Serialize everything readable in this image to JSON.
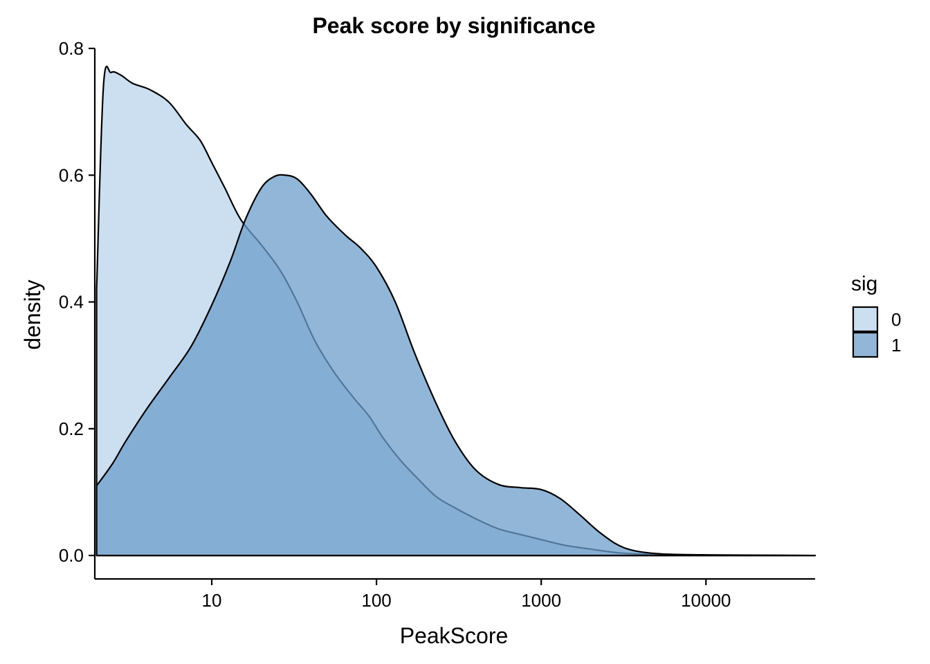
{
  "chart_data": {
    "type": "area",
    "title": "Peak score by significance",
    "xlabel": "PeakScore",
    "ylabel": "density",
    "x_scale": "log10",
    "xlim": [
      1.95,
      46000
    ],
    "ylim": [
      -0.037,
      0.8
    ],
    "x_ticks": [
      10,
      100,
      1000,
      10000
    ],
    "x_tick_labels": [
      "10",
      "100",
      "1000",
      "10000"
    ],
    "y_ticks": [
      0.0,
      0.2,
      0.4,
      0.6,
      0.8
    ],
    "y_tick_labels": [
      "0.0",
      "0.2",
      "0.4",
      "0.6",
      "0.8"
    ],
    "grid": false,
    "legend": {
      "title": "sig",
      "position": "right"
    },
    "series": [
      {
        "name": "0",
        "color": "#c6dbef",
        "opacity": 0.9,
        "points": [
          [
            2.0,
            0.42
          ],
          [
            2.2,
            0.74
          ],
          [
            2.45,
            0.762
          ],
          [
            2.8,
            0.758
          ],
          [
            3.3,
            0.745
          ],
          [
            4.2,
            0.735
          ],
          [
            5.5,
            0.715
          ],
          [
            7.0,
            0.68
          ],
          [
            8.5,
            0.655
          ],
          [
            10,
            0.62
          ],
          [
            12,
            0.58
          ],
          [
            15,
            0.53
          ],
          [
            20,
            0.49
          ],
          [
            26,
            0.45
          ],
          [
            33,
            0.4
          ],
          [
            42,
            0.34
          ],
          [
            55,
            0.29
          ],
          [
            72,
            0.25
          ],
          [
            90,
            0.22
          ],
          [
            110,
            0.185
          ],
          [
            140,
            0.15
          ],
          [
            180,
            0.12
          ],
          [
            230,
            0.093
          ],
          [
            300,
            0.075
          ],
          [
            400,
            0.058
          ],
          [
            550,
            0.042
          ],
          [
            750,
            0.033
          ],
          [
            1000,
            0.025
          ],
          [
            1400,
            0.016
          ],
          [
            2000,
            0.01
          ],
          [
            3000,
            0.004
          ],
          [
            5000,
            0.0015
          ],
          [
            10000,
            0.0005
          ],
          [
            46000,
            0.0
          ]
        ]
      },
      {
        "name": "1",
        "color": "#6e9dcb",
        "opacity": 0.75,
        "points": [
          [
            2.0,
            0.11
          ],
          [
            2.5,
            0.145
          ],
          [
            3.0,
            0.18
          ],
          [
            4.0,
            0.23
          ],
          [
            5.5,
            0.28
          ],
          [
            7.5,
            0.33
          ],
          [
            10,
            0.395
          ],
          [
            13,
            0.465
          ],
          [
            16,
            0.53
          ],
          [
            20,
            0.58
          ],
          [
            24,
            0.598
          ],
          [
            28,
            0.6
          ],
          [
            33,
            0.594
          ],
          [
            40,
            0.57
          ],
          [
            50,
            0.535
          ],
          [
            65,
            0.505
          ],
          [
            80,
            0.485
          ],
          [
            100,
            0.455
          ],
          [
            130,
            0.4
          ],
          [
            170,
            0.32
          ],
          [
            230,
            0.24
          ],
          [
            300,
            0.18
          ],
          [
            400,
            0.135
          ],
          [
            550,
            0.112
          ],
          [
            750,
            0.107
          ],
          [
            1000,
            0.104
          ],
          [
            1300,
            0.09
          ],
          [
            1700,
            0.065
          ],
          [
            2300,
            0.035
          ],
          [
            3200,
            0.012
          ],
          [
            5000,
            0.003
          ],
          [
            10000,
            0.001
          ],
          [
            46000,
            0.0
          ]
        ]
      }
    ]
  }
}
